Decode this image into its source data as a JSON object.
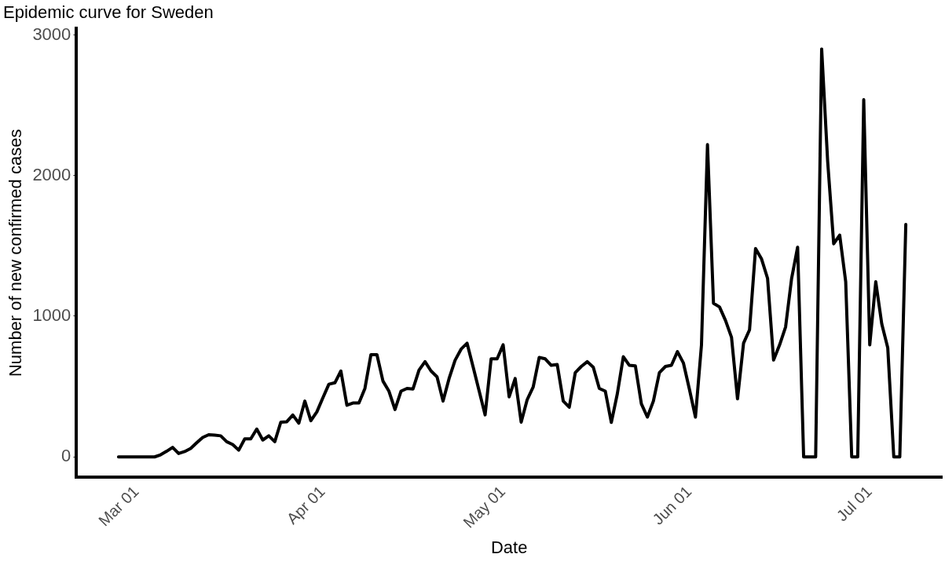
{
  "chart_data": {
    "type": "line",
    "title": "Epidemic curve for Sweden",
    "xlabel": "Date",
    "ylabel": "Number of new confirmed cases",
    "x": [
      "--02-27",
      "--02-28",
      "--02-29",
      "--03-01",
      "--03-02",
      "--03-03",
      "--03-04",
      "--03-05",
      "--03-06",
      "--03-07",
      "--03-08",
      "--03-09",
      "--03-10",
      "--03-11",
      "--03-12",
      "--03-13",
      "--03-14",
      "--03-15",
      "--03-16",
      "--03-17",
      "--03-18",
      "--03-19",
      "--03-20",
      "--03-21",
      "--03-22",
      "--03-23",
      "--03-24",
      "--03-25",
      "--03-26",
      "--03-27",
      "--03-28",
      "--03-29",
      "--03-30",
      "--03-31",
      "--04-01",
      "--04-02",
      "--04-03",
      "--04-04",
      "--04-05",
      "--04-06",
      "--04-07",
      "--04-08",
      "--04-09",
      "--04-10",
      "--04-11",
      "--04-12",
      "--04-13",
      "--04-14",
      "--04-15",
      "--04-16",
      "--04-17",
      "--04-18",
      "--04-19",
      "--04-20",
      "--04-21",
      "--04-22",
      "--04-23",
      "--04-24",
      "--04-25",
      "--04-26",
      "--04-27",
      "--04-28",
      "--04-29",
      "--04-30",
      "--05-01",
      "--05-02",
      "--05-03",
      "--05-04",
      "--05-05",
      "--05-06",
      "--05-07",
      "--05-08",
      "--05-09",
      "--05-10",
      "--05-11",
      "--05-12",
      "--05-13",
      "--05-14",
      "--05-15",
      "--05-16",
      "--05-17",
      "--05-18",
      "--05-19",
      "--05-20",
      "--05-21",
      "--05-22",
      "--05-23",
      "--05-24",
      "--05-25",
      "--05-26",
      "--05-27",
      "--05-28",
      "--05-29",
      "--05-30",
      "--05-31",
      "--06-01",
      "--06-02",
      "--06-03",
      "--06-04",
      "--06-05",
      "--06-06",
      "--06-07",
      "--06-08",
      "--06-09",
      "--06-10",
      "--06-11",
      "--06-12",
      "--06-13",
      "--06-14",
      "--06-15",
      "--06-16",
      "--06-17",
      "--06-18",
      "--06-19",
      "--06-20",
      "--06-21",
      "--06-22",
      "--06-23",
      "--06-24",
      "--06-25",
      "--06-26",
      "--06-27",
      "--06-28",
      "--06-29",
      "--06-30",
      "--07-01",
      "--07-02",
      "--07-03",
      "--07-04",
      "--07-05",
      "--07-06",
      "--07-07"
    ],
    "series": [
      {
        "color": "#000000",
        "values": [
          0,
          0,
          0,
          0,
          0,
          0,
          0,
          15,
          40,
          68,
          24,
          38,
          60,
          100,
          138,
          158,
          155,
          150,
          108,
          88,
          48,
          128,
          128,
          198,
          120,
          150,
          108,
          247,
          250,
          298,
          240,
          397,
          257,
          320,
          420,
          517,
          527,
          611,
          367,
          383,
          383,
          487,
          727,
          727,
          539,
          467,
          337,
          467,
          487,
          483,
          617,
          677,
          611,
          569,
          397,
          557,
          687,
          766,
          808,
          640,
          470,
          299,
          697,
          697,
          797,
          427,
          557,
          247,
          407,
          497,
          707,
          697,
          651,
          657,
          397,
          353,
          599,
          643,
          677,
          637,
          487,
          467,
          245,
          449,
          712,
          651,
          647,
          377,
          283,
          397,
          599,
          643,
          651,
          748,
          667,
          480,
          283,
          796,
          2220,
          1092,
          1066,
          970,
          850,
          413,
          808,
          904,
          1481,
          1407,
          1269,
          689,
          796,
          924,
          1269,
          1491,
          0,
          0,
          0,
          2900,
          2100,
          1515,
          1577,
          1245,
          0,
          0,
          2540,
          796,
          1245,
          946,
          775,
          0,
          0,
          1653
        ]
      }
    ],
    "xlim": [
      "--02-20",
      "--07-13"
    ],
    "xticks": [
      {
        "value": "--03-01",
        "label": "Mar 01"
      },
      {
        "value": "--04-01",
        "label": "Apr 01"
      },
      {
        "value": "--05-01",
        "label": "May 01"
      },
      {
        "value": "--06-01",
        "label": "Jun 01"
      },
      {
        "value": "--07-01",
        "label": "Jul 01"
      }
    ],
    "ylim": [
      -145,
      3045
    ],
    "yticks": [
      0,
      1000,
      2000,
      3000
    ],
    "marker": "none",
    "line_style": "solid"
  }
}
